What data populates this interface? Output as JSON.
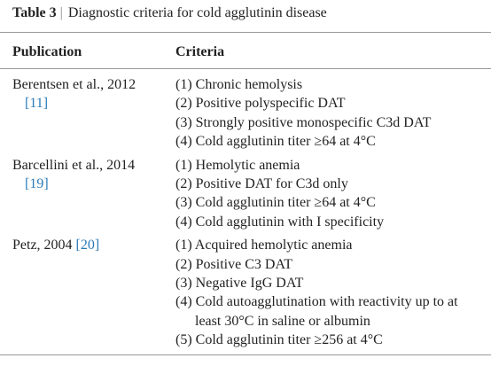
{
  "caption": {
    "label": "Table 3",
    "title": "Diagnostic criteria for cold agglutinin disease"
  },
  "table": {
    "header": [
      "Publication",
      "Criteria"
    ],
    "rows": [
      {
        "publication": "Berentsen et al., 2012",
        "ref": "[11]",
        "criteria": [
          "(1) Chronic hemolysis",
          "(2) Positive polyspecific DAT",
          "(3) Strongly positive monospecific C3d DAT",
          "(4) Cold agglutinin titer ≥64 at 4°C"
        ]
      },
      {
        "publication": "Barcellini et al., 2014",
        "ref": "[19]",
        "criteria": [
          "(1) Hemolytic anemia",
          "(2) Positive DAT for C3d only",
          "(3) Cold agglutinin titer ≥64 at 4°C",
          "(4) Cold agglutinin with I specificity"
        ]
      },
      {
        "publication": "Petz, 2004",
        "ref": "[20]",
        "criteria": [
          "(1) Acquired hemolytic anemia",
          "(2) Positive C3 DAT",
          "(3) Negative IgG DAT",
          "(4) Cold autoagglutination with reactivity up to at least 30°C in saline or albumin",
          "(5) Cold agglutinin titer ≥256 at 4°C"
        ]
      }
    ]
  }
}
